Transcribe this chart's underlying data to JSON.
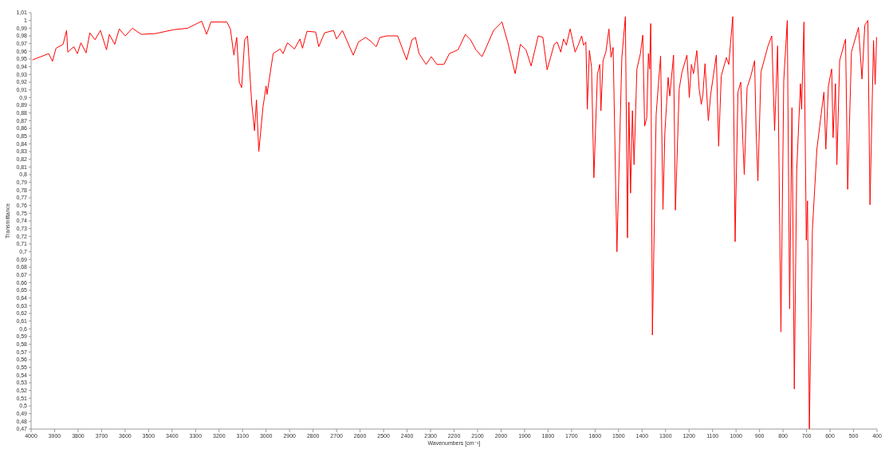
{
  "chart_data": {
    "type": "line",
    "xlabel": "Wavenumbers [cm⁻¹]",
    "ylabel": "Transmittance",
    "grid": false,
    "marker": "none",
    "line_style": "solid",
    "xlim": [
      4000,
      400
    ],
    "ylim": [
      0.47,
      1.01
    ],
    "xticks": [
      4000,
      3900,
      3800,
      3700,
      3600,
      3500,
      3400,
      3300,
      3200,
      3100,
      3000,
      2900,
      2800,
      2700,
      2600,
      2500,
      2400,
      2300,
      2200,
      2100,
      2000,
      1900,
      1800,
      1700,
      1600,
      1500,
      1400,
      1300,
      1200,
      1100,
      1000,
      900,
      800,
      700,
      600,
      500,
      400
    ],
    "yticks": [
      {
        "value": 0.47,
        "label": "0,47"
      },
      {
        "value": 0.48,
        "label": "0,48"
      },
      {
        "value": 0.49,
        "label": "0,49"
      },
      {
        "value": 0.5,
        "label": "0,5"
      },
      {
        "value": 0.51,
        "label": "0,51"
      },
      {
        "value": 0.52,
        "label": "0,52"
      },
      {
        "value": 0.53,
        "label": "0,53"
      },
      {
        "value": 0.54,
        "label": "0,54"
      },
      {
        "value": 0.55,
        "label": "0,55"
      },
      {
        "value": 0.56,
        "label": "0,56"
      },
      {
        "value": 0.57,
        "label": "0,57"
      },
      {
        "value": 0.58,
        "label": "0,58"
      },
      {
        "value": 0.59,
        "label": "0,59"
      },
      {
        "value": 0.6,
        "label": "0,6"
      },
      {
        "value": 0.61,
        "label": "0,61"
      },
      {
        "value": 0.62,
        "label": "0,62"
      },
      {
        "value": 0.63,
        "label": "0,63"
      },
      {
        "value": 0.64,
        "label": "0,64"
      },
      {
        "value": 0.65,
        "label": "0,65"
      },
      {
        "value": 0.66,
        "label": "0,66"
      },
      {
        "value": 0.67,
        "label": "0,67"
      },
      {
        "value": 0.68,
        "label": "0,68"
      },
      {
        "value": 0.69,
        "label": "0,69"
      },
      {
        "value": 0.7,
        "label": "0,7"
      },
      {
        "value": 0.71,
        "label": "0,71"
      },
      {
        "value": 0.72,
        "label": "0,72"
      },
      {
        "value": 0.73,
        "label": "0,73"
      },
      {
        "value": 0.74,
        "label": "0,74"
      },
      {
        "value": 0.75,
        "label": "0,75"
      },
      {
        "value": 0.76,
        "label": "0,76"
      },
      {
        "value": 0.77,
        "label": "0,77"
      },
      {
        "value": 0.78,
        "label": "0,78"
      },
      {
        "value": 0.79,
        "label": "0,79"
      },
      {
        "value": 0.8,
        "label": "0,8"
      },
      {
        "value": 0.81,
        "label": "0,81"
      },
      {
        "value": 0.82,
        "label": "0,82"
      },
      {
        "value": 0.83,
        "label": "0,83"
      },
      {
        "value": 0.84,
        "label": "0,84"
      },
      {
        "value": 0.85,
        "label": "0,85"
      },
      {
        "value": 0.86,
        "label": "0,86"
      },
      {
        "value": 0.87,
        "label": "0,87"
      },
      {
        "value": 0.88,
        "label": "0,88"
      },
      {
        "value": 0.89,
        "label": "0,89"
      },
      {
        "value": 0.9,
        "label": "0,9"
      },
      {
        "value": 0.91,
        "label": "0,91"
      },
      {
        "value": 0.92,
        "label": "0,92"
      },
      {
        "value": 0.93,
        "label": "0,93"
      },
      {
        "value": 0.94,
        "label": "0,94"
      },
      {
        "value": 0.95,
        "label": "0,95"
      },
      {
        "value": 0.96,
        "label": "0,96"
      },
      {
        "value": 0.97,
        "label": "0,97"
      },
      {
        "value": 0.98,
        "label": "0,98"
      },
      {
        "value": 0.99,
        "label": "0,99"
      },
      {
        "value": 1,
        "label": "1"
      },
      {
        "value": 1.01,
        "label": "1,01"
      }
    ],
    "series": [
      {
        "color": "#ff0000",
        "x": [
          3993,
          3925,
          3909,
          3894,
          3864,
          3849,
          3844,
          3818,
          3803,
          3788,
          3766,
          3750,
          3728,
          3705,
          3679,
          3667,
          3644,
          3625,
          3599,
          3569,
          3531,
          3471,
          3394,
          3334,
          3274,
          3253,
          3235,
          3167,
          3152,
          3137,
          3125,
          3114,
          3104,
          3091,
          3079,
          3061,
          3049,
          3041,
          3031,
          3013,
          3000,
          2996,
          2970,
          2940,
          2928,
          2909,
          2879,
          2856,
          2845,
          2826,
          2789,
          2776,
          2751,
          2713,
          2700,
          2675,
          2629,
          2607,
          2577,
          2554,
          2531,
          2516,
          2485,
          2440,
          2402,
          2379,
          2364,
          2349,
          2319,
          2297,
          2273,
          2243,
          2220,
          2183,
          2152,
          2130,
          2107,
          2081,
          2062,
          2032,
          1996,
          1971,
          1940,
          1918,
          1894,
          1872,
          1842,
          1822,
          1804,
          1774,
          1761,
          1746,
          1734,
          1722,
          1706,
          1685,
          1673,
          1657,
          1649,
          1639,
          1633,
          1624,
          1615,
          1605,
          1590,
          1580,
          1575,
          1566,
          1554,
          1541,
          1532,
          1523,
          1507,
          1486,
          1471,
          1462,
          1456,
          1449,
          1441,
          1434,
          1422,
          1407,
          1397,
          1389,
          1380,
          1373,
          1368,
          1363,
          1356,
          1340,
          1331,
          1321,
          1311,
          1303,
          1289,
          1282,
          1266,
          1258,
          1242,
          1230,
          1209,
          1199,
          1190,
          1181,
          1167,
          1157,
          1148,
          1141,
          1132,
          1118,
          1108,
          1084,
          1074,
          1063,
          1041,
          1031,
          1014,
          1004,
          992,
          980,
          971,
          965,
          953,
          937,
          921,
          915,
          907,
          894,
          864,
          848,
          836,
          823,
          809,
          797,
          782,
          772,
          762,
          752,
          742,
          726,
          721,
          711,
          701,
          696,
          688,
          675,
          656,
          638,
          626,
          618,
          607,
          593,
          587,
          577,
          571,
          559,
          534,
          525,
          509,
          479,
          464,
          452,
          439,
          430,
          415,
          408,
          402
        ],
        "values": [
          0.949,
          0.957,
          0.947,
          0.964,
          0.969,
          0.987,
          0.959,
          0.966,
          0.957,
          0.971,
          0.958,
          0.984,
          0.975,
          0.987,
          0.962,
          0.982,
          0.969,
          0.989,
          0.98,
          0.99,
          0.982,
          0.983,
          0.988,
          0.99,
          0.999,
          0.982,
          0.998,
          0.998,
          0.989,
          0.955,
          0.978,
          0.92,
          0.913,
          0.975,
          0.98,
          0.892,
          0.857,
          0.897,
          0.83,
          0.888,
          0.915,
          0.904,
          0.957,
          0.963,
          0.957,
          0.971,
          0.963,
          0.976,
          0.964,
          0.986,
          0.985,
          0.966,
          0.984,
          0.987,
          0.976,
          0.987,
          0.955,
          0.972,
          0.978,
          0.973,
          0.966,
          0.978,
          0.98,
          0.98,
          0.949,
          0.975,
          0.978,
          0.957,
          0.943,
          0.953,
          0.943,
          0.943,
          0.957,
          0.962,
          0.982,
          0.975,
          0.962,
          0.953,
          0.966,
          0.987,
          0.998,
          0.971,
          0.931,
          0.969,
          0.962,
          0.941,
          0.98,
          0.978,
          0.936,
          0.969,
          0.972,
          0.959,
          0.976,
          0.968,
          0.989,
          0.959,
          0.967,
          0.98,
          0.968,
          0.972,
          0.885,
          0.961,
          0.939,
          0.796,
          0.93,
          0.943,
          0.883,
          0.948,
          0.959,
          0.989,
          0.952,
          0.965,
          0.7,
          0.952,
          1.005,
          0.718,
          0.894,
          0.776,
          0.883,
          0.813,
          0.937,
          0.957,
          0.981,
          0.863,
          0.874,
          0.957,
          0.937,
          0.996,
          0.592,
          0.878,
          0.915,
          0.954,
          0.755,
          0.854,
          0.926,
          0.902,
          0.955,
          0.754,
          0.911,
          0.933,
          0.955,
          0.9,
          0.943,
          0.931,
          0.961,
          0.911,
          0.891,
          0.904,
          0.944,
          0.87,
          0.904,
          0.955,
          0.837,
          0.928,
          0.952,
          0.943,
          1.005,
          0.713,
          0.907,
          0.92,
          0.844,
          0.8,
          0.913,
          0.928,
          0.948,
          0.861,
          0.792,
          0.933,
          0.967,
          0.98,
          0.857,
          0.967,
          0.596,
          0.922,
          1.0,
          0.626,
          0.887,
          0.522,
          0.804,
          0.918,
          0.885,
          0.998,
          0.715,
          0.766,
          0.47,
          0.729,
          0.833,
          0.878,
          0.907,
          0.833,
          0.915,
          0.937,
          0.848,
          0.918,
          0.813,
          0.948,
          0.976,
          0.781,
          0.959,
          0.991,
          0.924,
          0.994,
          1.0,
          0.761,
          0.974,
          0.917,
          0.978
        ]
      }
    ]
  }
}
